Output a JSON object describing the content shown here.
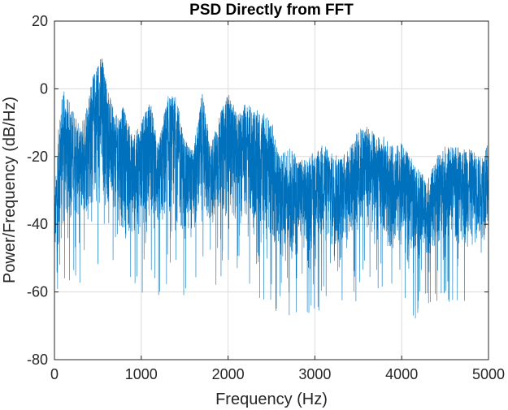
{
  "chart_data": {
    "type": "line",
    "title": "PSD Directly from FFT",
    "xlabel": "Frequency (Hz)",
    "ylabel": "Power/Frequency (dB/Hz)",
    "xlim": [
      0,
      5000
    ],
    "ylim": [
      -80,
      20
    ],
    "xticks": [
      0,
      1000,
      2000,
      3000,
      4000,
      5000
    ],
    "yticks": [
      -80,
      -60,
      -40,
      -20,
      0,
      20
    ],
    "grid": true,
    "series_color": "#0072BD",
    "series": [
      {
        "envelope_x": [
          0,
          50,
          100,
          200,
          300,
          400,
          500,
          550,
          600,
          700,
          800,
          900,
          1000,
          1100,
          1200,
          1300,
          1400,
          1500,
          1600,
          1700,
          1800,
          1900,
          2000,
          2100,
          2200,
          2300,
          2400,
          2500,
          2600,
          2700,
          2800,
          2900,
          3000,
          3100,
          3200,
          3300,
          3400,
          3500,
          3600,
          3700,
          3800,
          3900,
          4000,
          4100,
          4200,
          4300,
          4400,
          4500,
          4600,
          4700,
          4800,
          4900,
          5000
        ],
        "envelope_top": [
          -34,
          -10,
          0,
          -5,
          -12,
          0,
          9,
          10,
          2,
          -8,
          -5,
          -14,
          -10,
          -3,
          -16,
          -2,
          -2,
          -15,
          -18,
          -1,
          -16,
          -8,
          -1,
          -7,
          -4,
          -6,
          -7,
          -9,
          -20,
          -17,
          -20,
          -21,
          -18,
          -16,
          -19,
          -20,
          -17,
          -12,
          -10,
          -14,
          -14,
          -17,
          -16,
          -20,
          -24,
          -27,
          -20,
          -17,
          -17,
          -17,
          -18,
          -20,
          -16
        ],
        "envelope_bottom": [
          -52,
          -48,
          -45,
          -40,
          -40,
          -38,
          -35,
          -35,
          -36,
          -38,
          -45,
          -45,
          -43,
          -40,
          -45,
          -40,
          -40,
          -45,
          -45,
          -40,
          -42,
          -40,
          -38,
          -40,
          -42,
          -43,
          -45,
          -47,
          -50,
          -52,
          -50,
          -50,
          -48,
          -48,
          -50,
          -48,
          -46,
          -45,
          -44,
          -45,
          -47,
          -48,
          -48,
          -48,
          -52,
          -50,
          -48,
          -47,
          -46,
          -47,
          -48,
          -46,
          -45
        ]
      }
    ]
  }
}
